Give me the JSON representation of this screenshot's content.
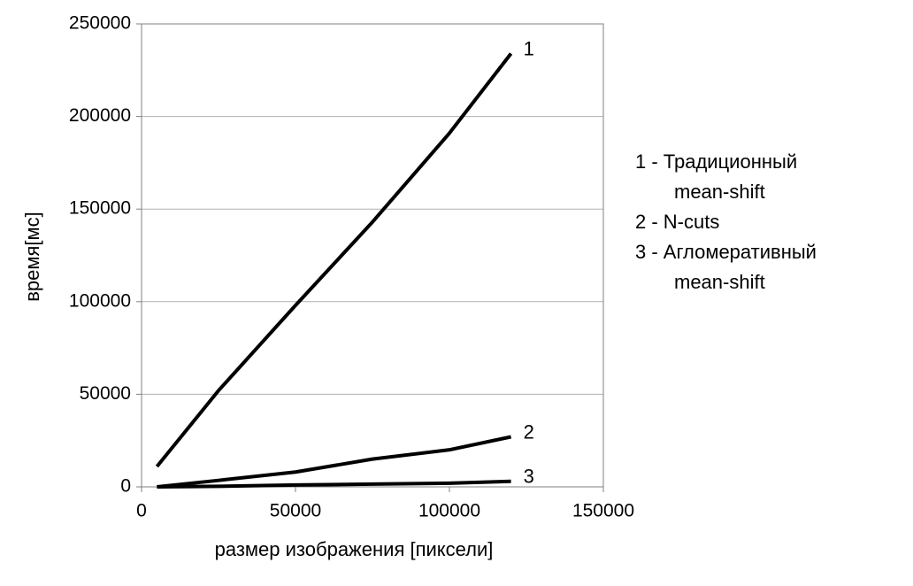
{
  "chart_data": {
    "type": "line",
    "x_label": "размер изображения [пиксели]",
    "y_label": "время[мс]",
    "x": [
      5000,
      25000,
      50000,
      75000,
      100000,
      120000
    ],
    "series": [
      {
        "name": "1",
        "color": "#000000",
        "values": [
          11000,
          52000,
          98000,
          143000,
          191000,
          234000
        ]
      },
      {
        "name": "2",
        "color": "#000000",
        "values": [
          0,
          3500,
          8000,
          15000,
          20000,
          27000
        ]
      },
      {
        "name": "3",
        "color": "#000000",
        "values": [
          0,
          300,
          1000,
          1500,
          2000,
          3000
        ]
      }
    ],
    "legend_text": [
      [
        "1 - Традиционный",
        "mean-shift"
      ],
      [
        "2 - N-cuts"
      ],
      [
        "3 - Агломеративный",
        "mean-shift"
      ]
    ],
    "xlim": [
      0,
      150000
    ],
    "xticks": [
      0,
      50000,
      100000,
      150000
    ],
    "ylim": [
      0,
      250000
    ],
    "yticks": [
      0,
      50000,
      100000,
      150000,
      200000,
      250000
    ],
    "grid": true
  }
}
